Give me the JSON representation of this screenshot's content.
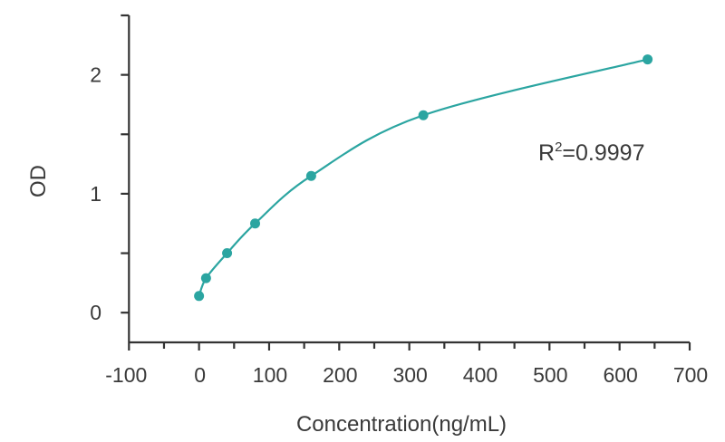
{
  "chart_data": {
    "type": "scatter",
    "title": "",
    "xlabel": "Concentration(ng/mL)",
    "ylabel": "OD",
    "xlim": [
      -100,
      700
    ],
    "ylim": [
      -0.25,
      2.5
    ],
    "xticks": [
      -100,
      0,
      100,
      200,
      300,
      400,
      500,
      600,
      700
    ],
    "xtick_labels": [
      "-100",
      "0",
      "100",
      "200",
      "300",
      "400",
      "500",
      "600",
      "700"
    ],
    "yticks": [
      0,
      1,
      2
    ],
    "ytick_labels": [
      "0",
      "1",
      "2"
    ],
    "grid": false,
    "series": [
      {
        "x": [
          0,
          10,
          40,
          80,
          160,
          320,
          640
        ],
        "y": [
          0.14,
          0.29,
          0.5,
          0.75,
          1.15,
          1.66,
          2.13
        ],
        "color": "#2ba5a1",
        "marker": "circle",
        "fit_curve": true
      }
    ],
    "annotation": {
      "r_label": "R",
      "sup": "2",
      "value_text": "=0.9997"
    }
  }
}
